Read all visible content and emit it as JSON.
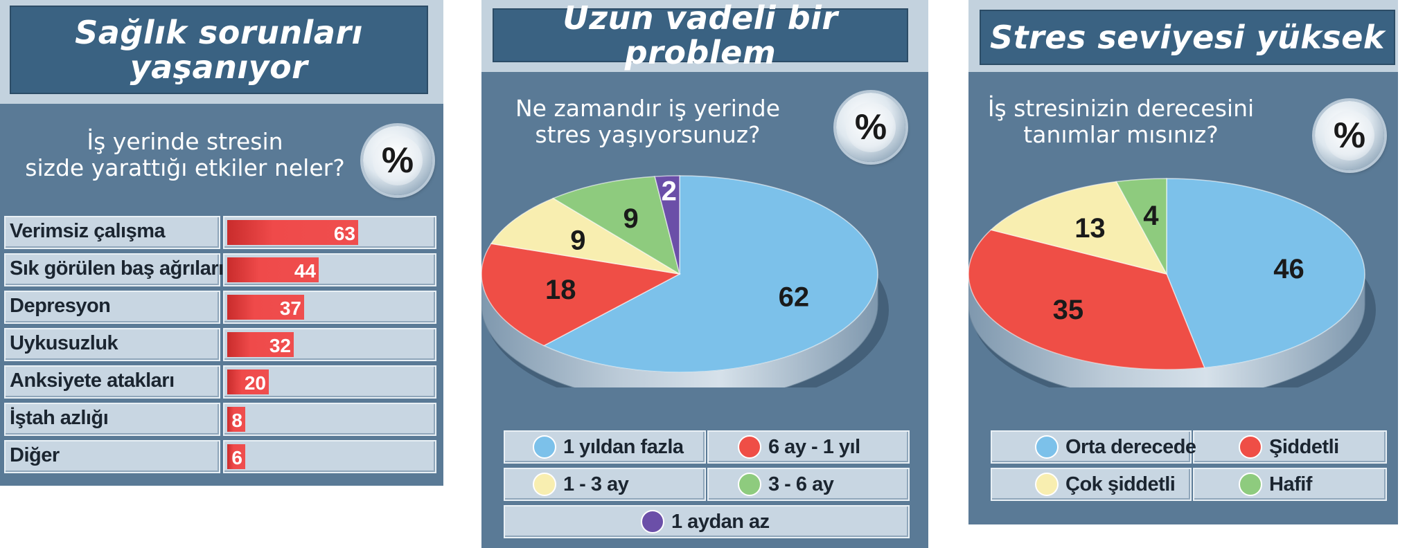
{
  "panels": {
    "health": {
      "title_line1": "Sağlık sorunları",
      "title_line2": "yaşanıyor",
      "question_line1": "İş yerinde stresin",
      "question_line2": "sizde yarattığı etkiler neler?",
      "badge": "%"
    },
    "duration": {
      "title": "Uzun vadeli bir problem",
      "question_line1": "Ne zamandır iş yerinde",
      "question_line2": "stres yaşıyorsunuz?",
      "badge": "%"
    },
    "level": {
      "title": "Stres seviyesi yüksek",
      "question_line1": "İş stresinizin derecesini",
      "question_line2": "tanımlar mısınız?",
      "badge": "%"
    }
  },
  "colors": {
    "panel_bg": "#5a7a96",
    "bar_red": "#ef4a4a",
    "blue": "#7cc1ea",
    "red": "#ef4e46",
    "yellow": "#f8eeb0",
    "green": "#8ecb7e",
    "purple": "#6b4fa8"
  },
  "chart_data": [
    {
      "type": "bar",
      "orientation": "horizontal",
      "categories": [
        "Verimsiz çalışma",
        "Sık görülen baş ağrıları",
        "Depresyon",
        "Uykusuzluk",
        "Anksiyete atakları",
        "İştah azlığı",
        "Diğer"
      ],
      "values": [
        63,
        44,
        37,
        32,
        20,
        8,
        6
      ],
      "xlim": [
        0,
        100
      ]
    },
    {
      "type": "pie",
      "categories": [
        "1 yıldan fazla",
        "6 ay - 1 yıl",
        "1 - 3 ay",
        "3 - 6 ay",
        "1 aydan az"
      ],
      "values": [
        62,
        18,
        9,
        9,
        2
      ],
      "colors": [
        "#7cc1ea",
        "#ef4e46",
        "#f8eeb0",
        "#8ecb7e",
        "#6b4fa8"
      ],
      "label_colors": [
        "#1a1a1a",
        "#1a1a1a",
        "#1a1a1a",
        "#1a1a1a",
        "#ffffff"
      ],
      "legend_order": [
        "1 yıldan fazla",
        "6 ay - 1 yıl",
        "1 - 3 ay",
        "3 - 6 ay",
        "1 aydan az"
      ]
    },
    {
      "type": "pie",
      "categories": [
        "Orta derecede",
        "Şiddetli",
        "Çok şiddetli",
        "Hafif"
      ],
      "values": [
        46,
        35,
        13,
        4
      ],
      "colors": [
        "#7cc1ea",
        "#ef4e46",
        "#f8eeb0",
        "#8ecb7e"
      ],
      "label_colors": [
        "#1a1a1a",
        "#1a1a1a",
        "#1a1a1a",
        "#1a1a1a"
      ],
      "legend_order": [
        "Orta derecede",
        "Şiddetli",
        "Çok şiddetli",
        "Hafif"
      ]
    }
  ]
}
